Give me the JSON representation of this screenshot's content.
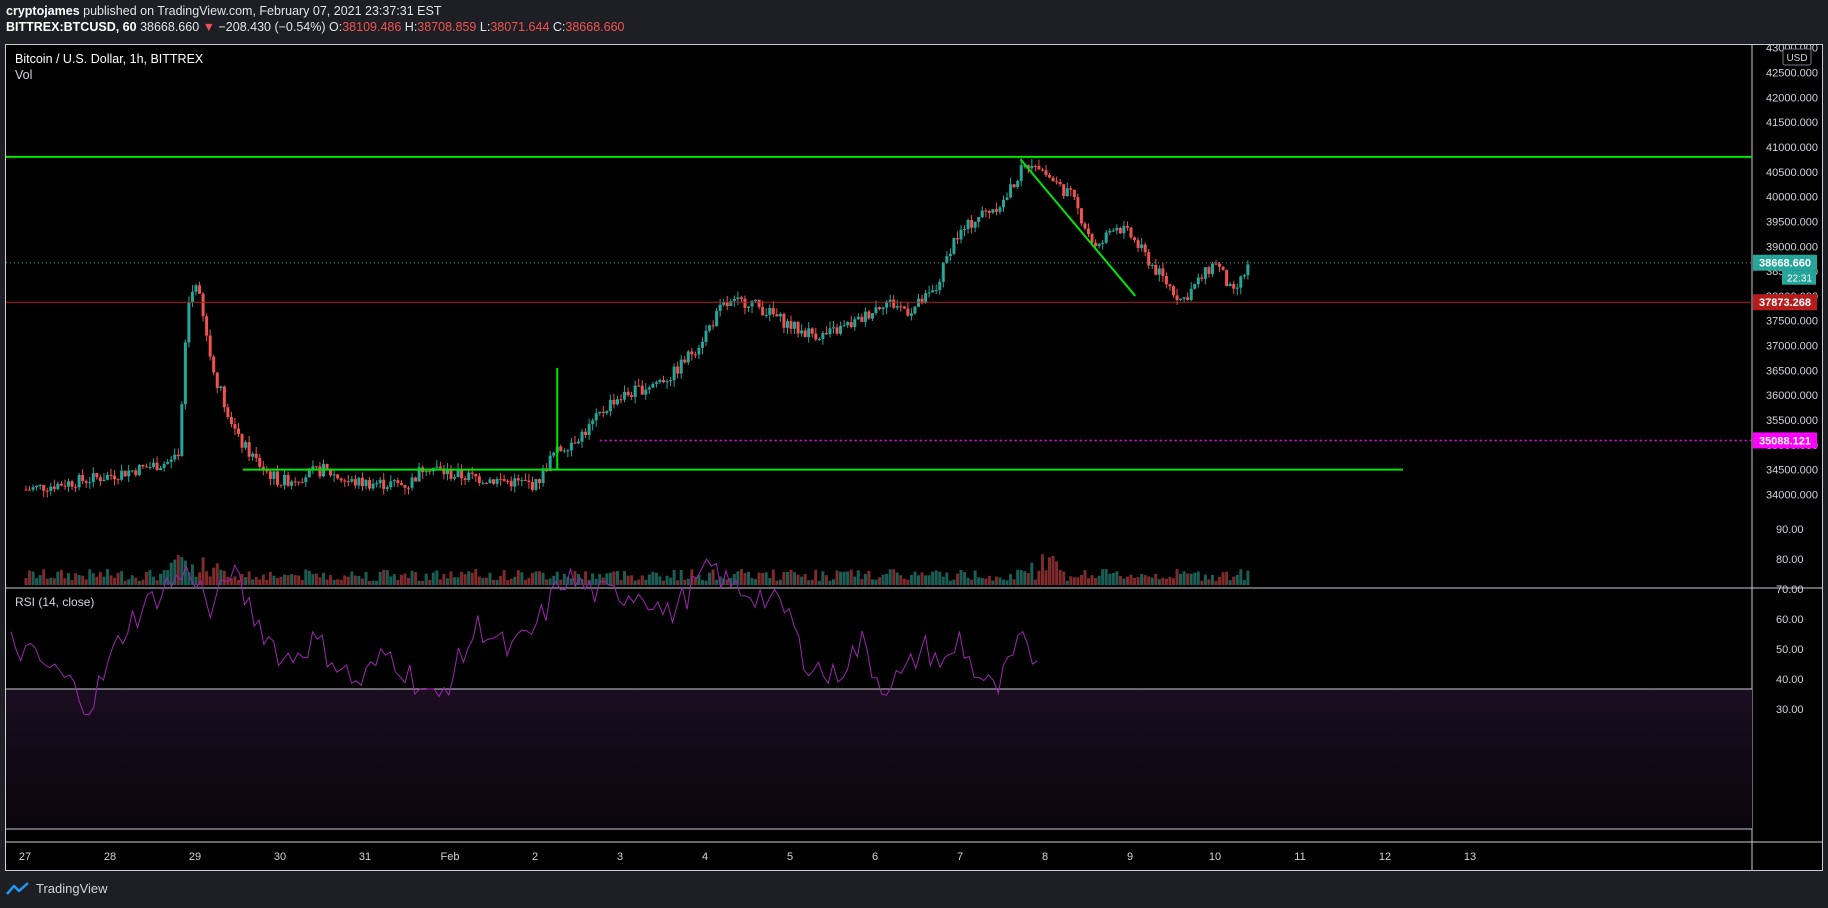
{
  "header": {
    "author": "cryptojames",
    "published": "published on TradingView.com, February 07, 2021 23:37:31 EST",
    "symbol": "BITTREX:BTCUSD, 60",
    "last": "38668.660",
    "change": "−208.430 (−0.54%)",
    "o_label": "O:",
    "o": "38109.486",
    "h_label": "H:",
    "h": "38708.859",
    "l_label": "L:",
    "l": "38071.644",
    "c_label": "C:",
    "c": "38668.660"
  },
  "legend": {
    "title": "Bitcoin / U.S. Dollar, 1h, BITTREX",
    "vol": "Vol",
    "rsi": "RSI (14, close)"
  },
  "currency": "USD",
  "price_axis": {
    "ticks": [
      "43000.000",
      "42500.000",
      "42000.000",
      "41500.000",
      "41000.000",
      "40500.000",
      "40000.000",
      "39500.000",
      "39000.000",
      "38500.000",
      "38000.000",
      "37500.000",
      "37000.000",
      "36500.000",
      "36000.000",
      "35500.000",
      "35000.000",
      "34500.000",
      "34000.000"
    ],
    "last_label": "38668.660",
    "countdown": "22:31",
    "support_label": "37873.268",
    "magenta_label": "35088.121"
  },
  "rsi_axis": {
    "ticks": [
      "90.00",
      "80.00",
      "70.00",
      "60.00",
      "50.00",
      "40.00",
      "30.00"
    ]
  },
  "time_axis": {
    "ticks": [
      "27",
      "28",
      "29",
      "30",
      "31",
      "Feb",
      "2",
      "3",
      "4",
      "5",
      "6",
      "7",
      "8",
      "9",
      "10",
      "11",
      "12",
      "13"
    ]
  },
  "colors": {
    "up": "#26a69a",
    "down": "#ef5350",
    "drawing": "#00e600",
    "support": "#b71c1c",
    "magenta": "#ff00ff",
    "rsi": "#9c27b0"
  },
  "footer": {
    "brand": "TradingView"
  },
  "chart_data": {
    "type": "candlestick",
    "title": "Bitcoin / U.S. Dollar, 1h, BITTREX",
    "x_days": [
      "27",
      "28",
      "29",
      "30",
      "31",
      "Feb",
      "2",
      "3",
      "4",
      "5",
      "6",
      "7",
      "8"
    ],
    "close_path": [
      [
        0,
        34100
      ],
      [
        0.9,
        34350
      ],
      [
        1.8,
        34700
      ],
      [
        1.9,
        37800
      ],
      [
        2.0,
        38300
      ],
      [
        2.2,
        36500
      ],
      [
        2.5,
        35100
      ],
      [
        2.8,
        34500
      ],
      [
        3.0,
        34250
      ],
      [
        3.5,
        34500
      ],
      [
        3.8,
        34250
      ],
      [
        4.5,
        34200
      ],
      [
        4.7,
        34600
      ],
      [
        5.0,
        34400
      ],
      [
        5.5,
        34300
      ],
      [
        6.0,
        34200
      ],
      [
        6.2,
        34800
      ],
      [
        6.6,
        35300
      ],
      [
        6.9,
        35900
      ],
      [
        7.2,
        36100
      ],
      [
        7.6,
        36400
      ],
      [
        7.9,
        37000
      ],
      [
        8.2,
        37800
      ],
      [
        8.5,
        37900
      ],
      [
        8.8,
        37600
      ],
      [
        9.1,
        37300
      ],
      [
        9.4,
        37200
      ],
      [
        9.8,
        37500
      ],
      [
        10.1,
        37900
      ],
      [
        10.4,
        37700
      ],
      [
        10.7,
        38100
      ],
      [
        10.9,
        39100
      ],
      [
        11.2,
        39600
      ],
      [
        11.5,
        39900
      ],
      [
        11.7,
        40500
      ],
      [
        11.85,
        40750
      ],
      [
        12.0,
        40450
      ],
      [
        12.3,
        40000
      ],
      [
        12.6,
        38900
      ],
      [
        12.8,
        39450
      ],
      [
        13.0,
        39200
      ],
      [
        13.3,
        38500
      ],
      [
        13.6,
        37900
      ],
      [
        13.8,
        38300
      ],
      [
        14.0,
        38700
      ],
      [
        14.2,
        38000
      ],
      [
        14.4,
        38668
      ]
    ],
    "volume_values": [],
    "rsi_path": [
      [
        0,
        52
      ],
      [
        0.9,
        40
      ],
      [
        1.3,
        31
      ],
      [
        1.9,
        58
      ],
      [
        2.6,
        72
      ],
      [
        3.0,
        76
      ],
      [
        3.3,
        61
      ],
      [
        3.6,
        77
      ],
      [
        4.0,
        61
      ],
      [
        4.5,
        46
      ],
      [
        5.0,
        53
      ],
      [
        5.7,
        38
      ],
      [
        6.2,
        49
      ],
      [
        7.0,
        32
      ],
      [
        7.7,
        58
      ],
      [
        8.2,
        49
      ],
      [
        8.6,
        56
      ],
      [
        9.1,
        74
      ],
      [
        9.7,
        68
      ],
      [
        10.4,
        69
      ],
      [
        10.8,
        61
      ],
      [
        11.2,
        70
      ],
      [
        11.5,
        78
      ],
      [
        11.8,
        71
      ],
      [
        12.3,
        68
      ],
      [
        12.8,
        62
      ],
      [
        13.0,
        48
      ],
      [
        13.5,
        40
      ],
      [
        14.0,
        52
      ],
      [
        14.3,
        38
      ],
      [
        14.7,
        41
      ],
      [
        15.0,
        51
      ],
      [
        15.4,
        44
      ],
      [
        15.6,
        54
      ],
      [
        15.8,
        44
      ],
      [
        16.2,
        35
      ],
      [
        16.6,
        52
      ],
      [
        16.9,
        46
      ]
    ],
    "hlines": [
      {
        "name": "resistance",
        "value": 40800
      },
      {
        "name": "support",
        "value": 37873.268
      },
      {
        "name": "base",
        "value": 34500
      },
      {
        "name": "level",
        "value": 35088.121
      }
    ],
    "trendline": [
      [
        40800,
        "Feb 6"
      ],
      [
        38000,
        "Feb 9"
      ]
    ],
    "rsi_bands": [
      70,
      30
    ]
  }
}
